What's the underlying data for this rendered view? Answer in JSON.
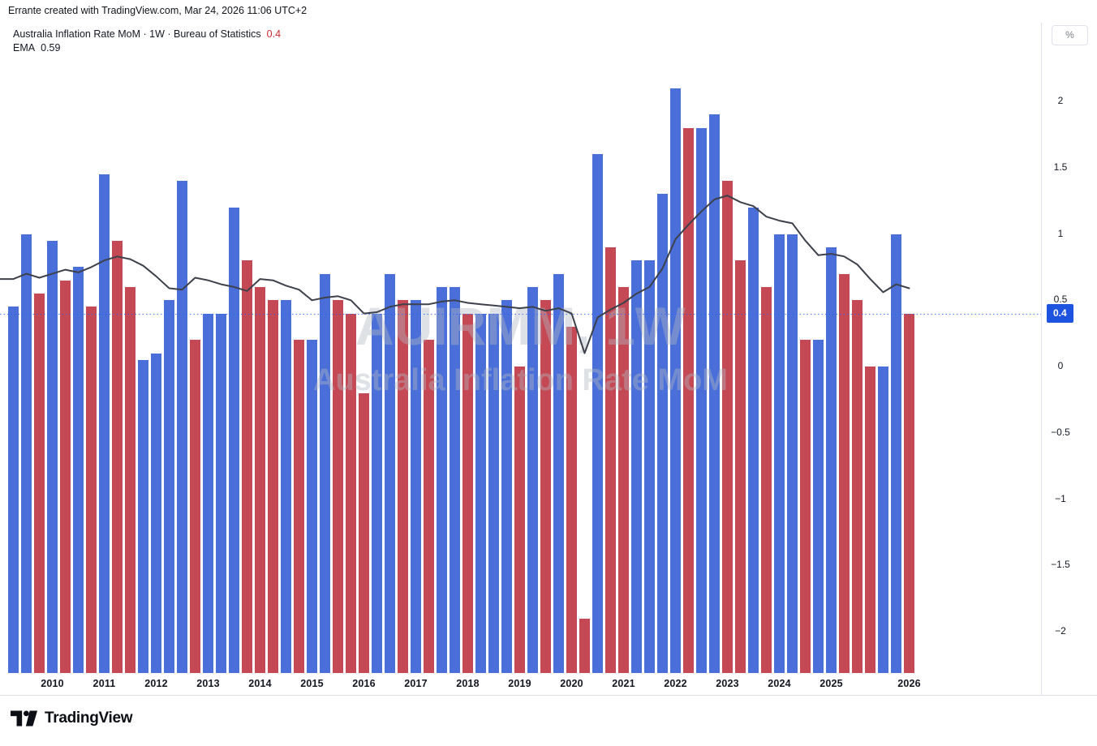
{
  "attribution": "Errante created with TradingView.com, Mar 24, 2026 11:06 UTC+2",
  "legend": {
    "title": "Australia Inflation Rate MoM · 1W · Bureau of Statistics",
    "value": "0.4",
    "ema_label": "EMA",
    "ema_value": "0.59"
  },
  "watermark": {
    "line1": "AUIRMM, 1W",
    "line2": "Australia Inflation Rate MoM"
  },
  "price_axis": {
    "unit_button": "%",
    "ticks": [
      {
        "label": "2",
        "value": 2
      },
      {
        "label": "1.5",
        "value": 1.5
      },
      {
        "label": "1",
        "value": 1
      },
      {
        "label": "0.5",
        "value": 0.5
      },
      {
        "label": "0",
        "value": 0
      },
      {
        "label": "−0.5",
        "value": -0.5
      },
      {
        "label": "−1",
        "value": -1
      },
      {
        "label": "−1.5",
        "value": -1.5
      },
      {
        "label": "−2",
        "value": -2
      }
    ],
    "last": {
      "label": "0.4",
      "value": 0.4
    }
  },
  "time_axis": {
    "labels": [
      {
        "label": "2010",
        "bar_index": 3
      },
      {
        "label": "2011",
        "bar_index": 7
      },
      {
        "label": "2012",
        "bar_index": 11
      },
      {
        "label": "2013",
        "bar_index": 15
      },
      {
        "label": "2014",
        "bar_index": 19
      },
      {
        "label": "2015",
        "bar_index": 23
      },
      {
        "label": "2016",
        "bar_index": 27
      },
      {
        "label": "2017",
        "bar_index": 31
      },
      {
        "label": "2018",
        "bar_index": 35
      },
      {
        "label": "2019",
        "bar_index": 39
      },
      {
        "label": "2020",
        "bar_index": 43
      },
      {
        "label": "2021",
        "bar_index": 47
      },
      {
        "label": "2022",
        "bar_index": 51
      },
      {
        "label": "2023",
        "bar_index": 55
      },
      {
        "label": "2024",
        "bar_index": 59
      },
      {
        "label": "2025",
        "bar_index": 63
      },
      {
        "label": "2026",
        "bar_index": 69
      }
    ]
  },
  "footer": {
    "brand": "TradingView"
  },
  "colors": {
    "bar_up": "#4a6fd8",
    "bar_down": "#c44954",
    "ema_line": "#3c414b",
    "last_value_line": "#2962ff",
    "badge_bg": "#1e53e0",
    "legend_value_red": "#cc2a33",
    "text": "#131722",
    "muted_text": "#787b86",
    "border": "#e0e3eb",
    "watermark": "#b2b8c4"
  },
  "chart_data": {
    "type": "bar",
    "title": "Australia Inflation Rate MoM",
    "timeframe": "1W",
    "source": "Bureau of Statistics",
    "unit": "%",
    "last_value": 0.4,
    "ema_last": 0.59,
    "ylim": [
      -2.31,
      2.59
    ],
    "grid": false,
    "legend_position": "top-left",
    "values": [
      0.45,
      1.0,
      0.55,
      0.95,
      0.65,
      0.75,
      0.45,
      1.45,
      0.95,
      0.6,
      0.05,
      0.1,
      0.5,
      1.4,
      0.2,
      0.4,
      0.4,
      1.2,
      0.8,
      0.6,
      0.5,
      0.5,
      0.2,
      0.2,
      0.7,
      0.5,
      0.4,
      -0.2,
      0.4,
      0.7,
      0.5,
      0.5,
      0.2,
      0.6,
      0.6,
      0.4,
      0.4,
      0.4,
      0.5,
      0.0,
      0.6,
      0.5,
      0.7,
      0.3,
      -1.9,
      1.6,
      0.9,
      0.6,
      0.8,
      0.8,
      1.3,
      2.1,
      1.8,
      1.8,
      1.9,
      1.4,
      0.8,
      1.2,
      0.6,
      1.0,
      1.0,
      0.2,
      0.2,
      0.9,
      0.7,
      0.5,
      0.0,
      0.0,
      1.0,
      0.4
    ],
    "directions": [
      "up",
      "up",
      "down",
      "up",
      "down",
      "up",
      "down",
      "up",
      "down",
      "down",
      "up",
      "up",
      "up",
      "up",
      "down",
      "up",
      "up",
      "up",
      "down",
      "down",
      "down",
      "up",
      "down",
      "up",
      "up",
      "down",
      "down",
      "down",
      "up",
      "up",
      "down",
      "up",
      "down",
      "up",
      "up",
      "down",
      "up",
      "up",
      "up",
      "down",
      "up",
      "down",
      "up",
      "down",
      "down",
      "up",
      "down",
      "down",
      "up",
      "up",
      "up",
      "up",
      "down",
      "up",
      "up",
      "down",
      "down",
      "up",
      "down",
      "up",
      "up",
      "down",
      "up",
      "up",
      "down",
      "down",
      "down",
      "up",
      "up",
      "down"
    ],
    "ema": [
      0.66,
      0.7,
      0.67,
      0.7,
      0.73,
      0.71,
      0.75,
      0.8,
      0.83,
      0.81,
      0.76,
      0.68,
      0.59,
      0.58,
      0.67,
      0.65,
      0.62,
      0.6,
      0.57,
      0.66,
      0.65,
      0.61,
      0.58,
      0.5,
      0.52,
      0.53,
      0.5,
      0.4,
      0.41,
      0.45,
      0.47,
      0.47,
      0.47,
      0.49,
      0.5,
      0.48,
      0.47,
      0.46,
      0.45,
      0.44,
      0.45,
      0.42,
      0.44,
      0.4,
      0.1,
      0.37,
      0.43,
      0.48,
      0.55,
      0.6,
      0.74,
      0.96,
      1.07,
      1.17,
      1.26,
      1.29,
      1.24,
      1.21,
      1.13,
      1.1,
      1.08,
      0.95,
      0.84,
      0.85,
      0.83,
      0.77,
      0.66,
      0.56,
      0.62,
      0.59
    ]
  }
}
